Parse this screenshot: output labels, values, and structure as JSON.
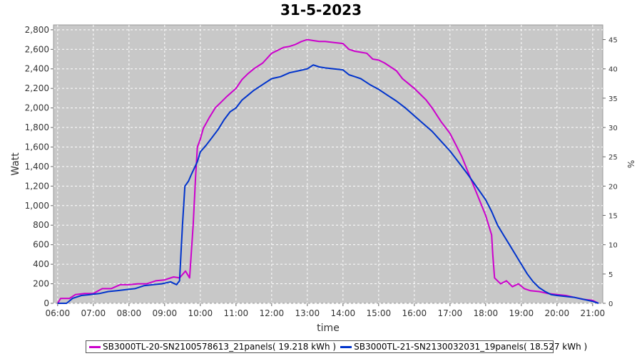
{
  "chart_data": {
    "type": "line",
    "title": "31-5-2023",
    "xlabel": "time",
    "ylabel": "Watt",
    "y2label": "%",
    "xlim": [
      "05:53",
      "21:17"
    ],
    "ylim": [
      0,
      2850
    ],
    "y2lim": [
      0,
      47.5
    ],
    "x_ticks": [
      "06:00",
      "07:00",
      "08:00",
      "09:00",
      "10:00",
      "11:00",
      "12:00",
      "13:00",
      "14:00",
      "15:00",
      "16:00",
      "17:00",
      "18:00",
      "19:00",
      "20:00",
      "21:00"
    ],
    "y_ticks": [
      "0",
      "200",
      "400",
      "600",
      "800",
      "1,000",
      "1,200",
      "1,400",
      "1,600",
      "1,800",
      "2,000",
      "2,200",
      "2,400",
      "2,600",
      "2,800"
    ],
    "y2_ticks": [
      "0",
      "5",
      "10",
      "15",
      "20",
      "25",
      "30",
      "35",
      "40",
      "45"
    ],
    "grid": true,
    "legend_position": "bottom",
    "series": [
      {
        "name": "SB3000TL-20-SN2100578613_21panels( 19.218 kWh )",
        "color": "#cc00cc",
        "points": [
          [
            "06:00",
            0
          ],
          [
            "06:05",
            50
          ],
          [
            "06:20",
            50
          ],
          [
            "06:30",
            90
          ],
          [
            "06:45",
            100
          ],
          [
            "07:00",
            100
          ],
          [
            "07:15",
            150
          ],
          [
            "07:30",
            150
          ],
          [
            "07:45",
            190
          ],
          [
            "08:00",
            190
          ],
          [
            "08:15",
            200
          ],
          [
            "08:30",
            200
          ],
          [
            "08:45",
            230
          ],
          [
            "09:00",
            240
          ],
          [
            "09:15",
            270
          ],
          [
            "09:25",
            260
          ],
          [
            "09:35",
            330
          ],
          [
            "09:42",
            260
          ],
          [
            "09:48",
            800
          ],
          [
            "09:52",
            1300
          ],
          [
            "09:55",
            1600
          ],
          [
            "10:00",
            1680
          ],
          [
            "10:05",
            1790
          ],
          [
            "10:15",
            1900
          ],
          [
            "10:25",
            2000
          ],
          [
            "10:35",
            2060
          ],
          [
            "10:45",
            2120
          ],
          [
            "11:00",
            2200
          ],
          [
            "11:10",
            2290
          ],
          [
            "11:20",
            2350
          ],
          [
            "11:30",
            2400
          ],
          [
            "11:45",
            2460
          ],
          [
            "12:00",
            2560
          ],
          [
            "12:10",
            2590
          ],
          [
            "12:20",
            2620
          ],
          [
            "12:30",
            2630
          ],
          [
            "12:40",
            2650
          ],
          [
            "12:50",
            2680
          ],
          [
            "13:00",
            2700
          ],
          [
            "13:10",
            2690
          ],
          [
            "13:20",
            2680
          ],
          [
            "13:30",
            2680
          ],
          [
            "13:45",
            2670
          ],
          [
            "14:00",
            2660
          ],
          [
            "14:10",
            2600
          ],
          [
            "14:20",
            2580
          ],
          [
            "14:30",
            2570
          ],
          [
            "14:40",
            2560
          ],
          [
            "14:50",
            2500
          ],
          [
            "15:00",
            2490
          ],
          [
            "15:10",
            2460
          ],
          [
            "15:20",
            2420
          ],
          [
            "15:30",
            2380
          ],
          [
            "15:40",
            2300
          ],
          [
            "15:50",
            2250
          ],
          [
            "16:00",
            2200
          ],
          [
            "16:10",
            2140
          ],
          [
            "16:20",
            2080
          ],
          [
            "16:30",
            2000
          ],
          [
            "16:45",
            1860
          ],
          [
            "17:00",
            1740
          ],
          [
            "17:10",
            1620
          ],
          [
            "17:20",
            1500
          ],
          [
            "17:30",
            1350
          ],
          [
            "17:40",
            1200
          ],
          [
            "17:50",
            1050
          ],
          [
            "18:00",
            900
          ],
          [
            "18:10",
            700
          ],
          [
            "18:12",
            500
          ],
          [
            "18:15",
            260
          ],
          [
            "18:25",
            200
          ],
          [
            "18:35",
            230
          ],
          [
            "18:45",
            170
          ],
          [
            "18:55",
            200
          ],
          [
            "19:05",
            150
          ],
          [
            "19:15",
            130
          ],
          [
            "19:30",
            120
          ],
          [
            "19:45",
            100
          ],
          [
            "20:00",
            90
          ],
          [
            "20:15",
            80
          ],
          [
            "20:30",
            60
          ],
          [
            "20:45",
            40
          ],
          [
            "21:00",
            30
          ],
          [
            "21:10",
            0
          ]
        ]
      },
      {
        "name": "SB3000TL-21-SN2130032031_19panels( 18.527 kWh )",
        "color": "#0033cc",
        "points": [
          [
            "06:00",
            0
          ],
          [
            "06:15",
            0
          ],
          [
            "06:25",
            50
          ],
          [
            "06:40",
            80
          ],
          [
            "06:55",
            90
          ],
          [
            "07:10",
            100
          ],
          [
            "07:25",
            120
          ],
          [
            "07:40",
            130
          ],
          [
            "07:55",
            140
          ],
          [
            "08:10",
            150
          ],
          [
            "08:25",
            180
          ],
          [
            "08:40",
            190
          ],
          [
            "08:55",
            200
          ],
          [
            "09:10",
            220
          ],
          [
            "09:20",
            190
          ],
          [
            "09:25",
            230
          ],
          [
            "09:30",
            800
          ],
          [
            "09:34",
            1200
          ],
          [
            "09:40",
            1250
          ],
          [
            "09:45",
            1320
          ],
          [
            "09:55",
            1450
          ],
          [
            "10:00",
            1550
          ],
          [
            "10:10",
            1620
          ],
          [
            "10:20",
            1700
          ],
          [
            "10:30",
            1780
          ],
          [
            "10:40",
            1880
          ],
          [
            "10:50",
            1960
          ],
          [
            "11:00",
            2000
          ],
          [
            "11:10",
            2080
          ],
          [
            "11:20",
            2130
          ],
          [
            "11:30",
            2180
          ],
          [
            "11:45",
            2240
          ],
          [
            "12:00",
            2300
          ],
          [
            "12:15",
            2320
          ],
          [
            "12:30",
            2360
          ],
          [
            "12:45",
            2380
          ],
          [
            "13:00",
            2400
          ],
          [
            "13:10",
            2440
          ],
          [
            "13:20",
            2420
          ],
          [
            "13:30",
            2410
          ],
          [
            "13:45",
            2400
          ],
          [
            "14:00",
            2390
          ],
          [
            "14:10",
            2340
          ],
          [
            "14:20",
            2320
          ],
          [
            "14:30",
            2300
          ],
          [
            "14:45",
            2240
          ],
          [
            "15:00",
            2190
          ],
          [
            "15:15",
            2130
          ],
          [
            "15:30",
            2070
          ],
          [
            "15:45",
            2000
          ],
          [
            "16:00",
            1920
          ],
          [
            "16:15",
            1840
          ],
          [
            "16:30",
            1760
          ],
          [
            "16:45",
            1660
          ],
          [
            "17:00",
            1560
          ],
          [
            "17:15",
            1440
          ],
          [
            "17:30",
            1320
          ],
          [
            "17:45",
            1190
          ],
          [
            "18:00",
            1060
          ],
          [
            "18:10",
            940
          ],
          [
            "18:20",
            800
          ],
          [
            "18:30",
            700
          ],
          [
            "18:40",
            600
          ],
          [
            "18:50",
            500
          ],
          [
            "19:00",
            400
          ],
          [
            "19:10",
            300
          ],
          [
            "19:20",
            220
          ],
          [
            "19:30",
            160
          ],
          [
            "19:40",
            120
          ],
          [
            "19:50",
            90
          ],
          [
            "20:00",
            80
          ],
          [
            "20:15",
            70
          ],
          [
            "20:30",
            60
          ],
          [
            "20:45",
            40
          ],
          [
            "21:00",
            20
          ],
          [
            "21:10",
            0
          ]
        ]
      }
    ]
  }
}
